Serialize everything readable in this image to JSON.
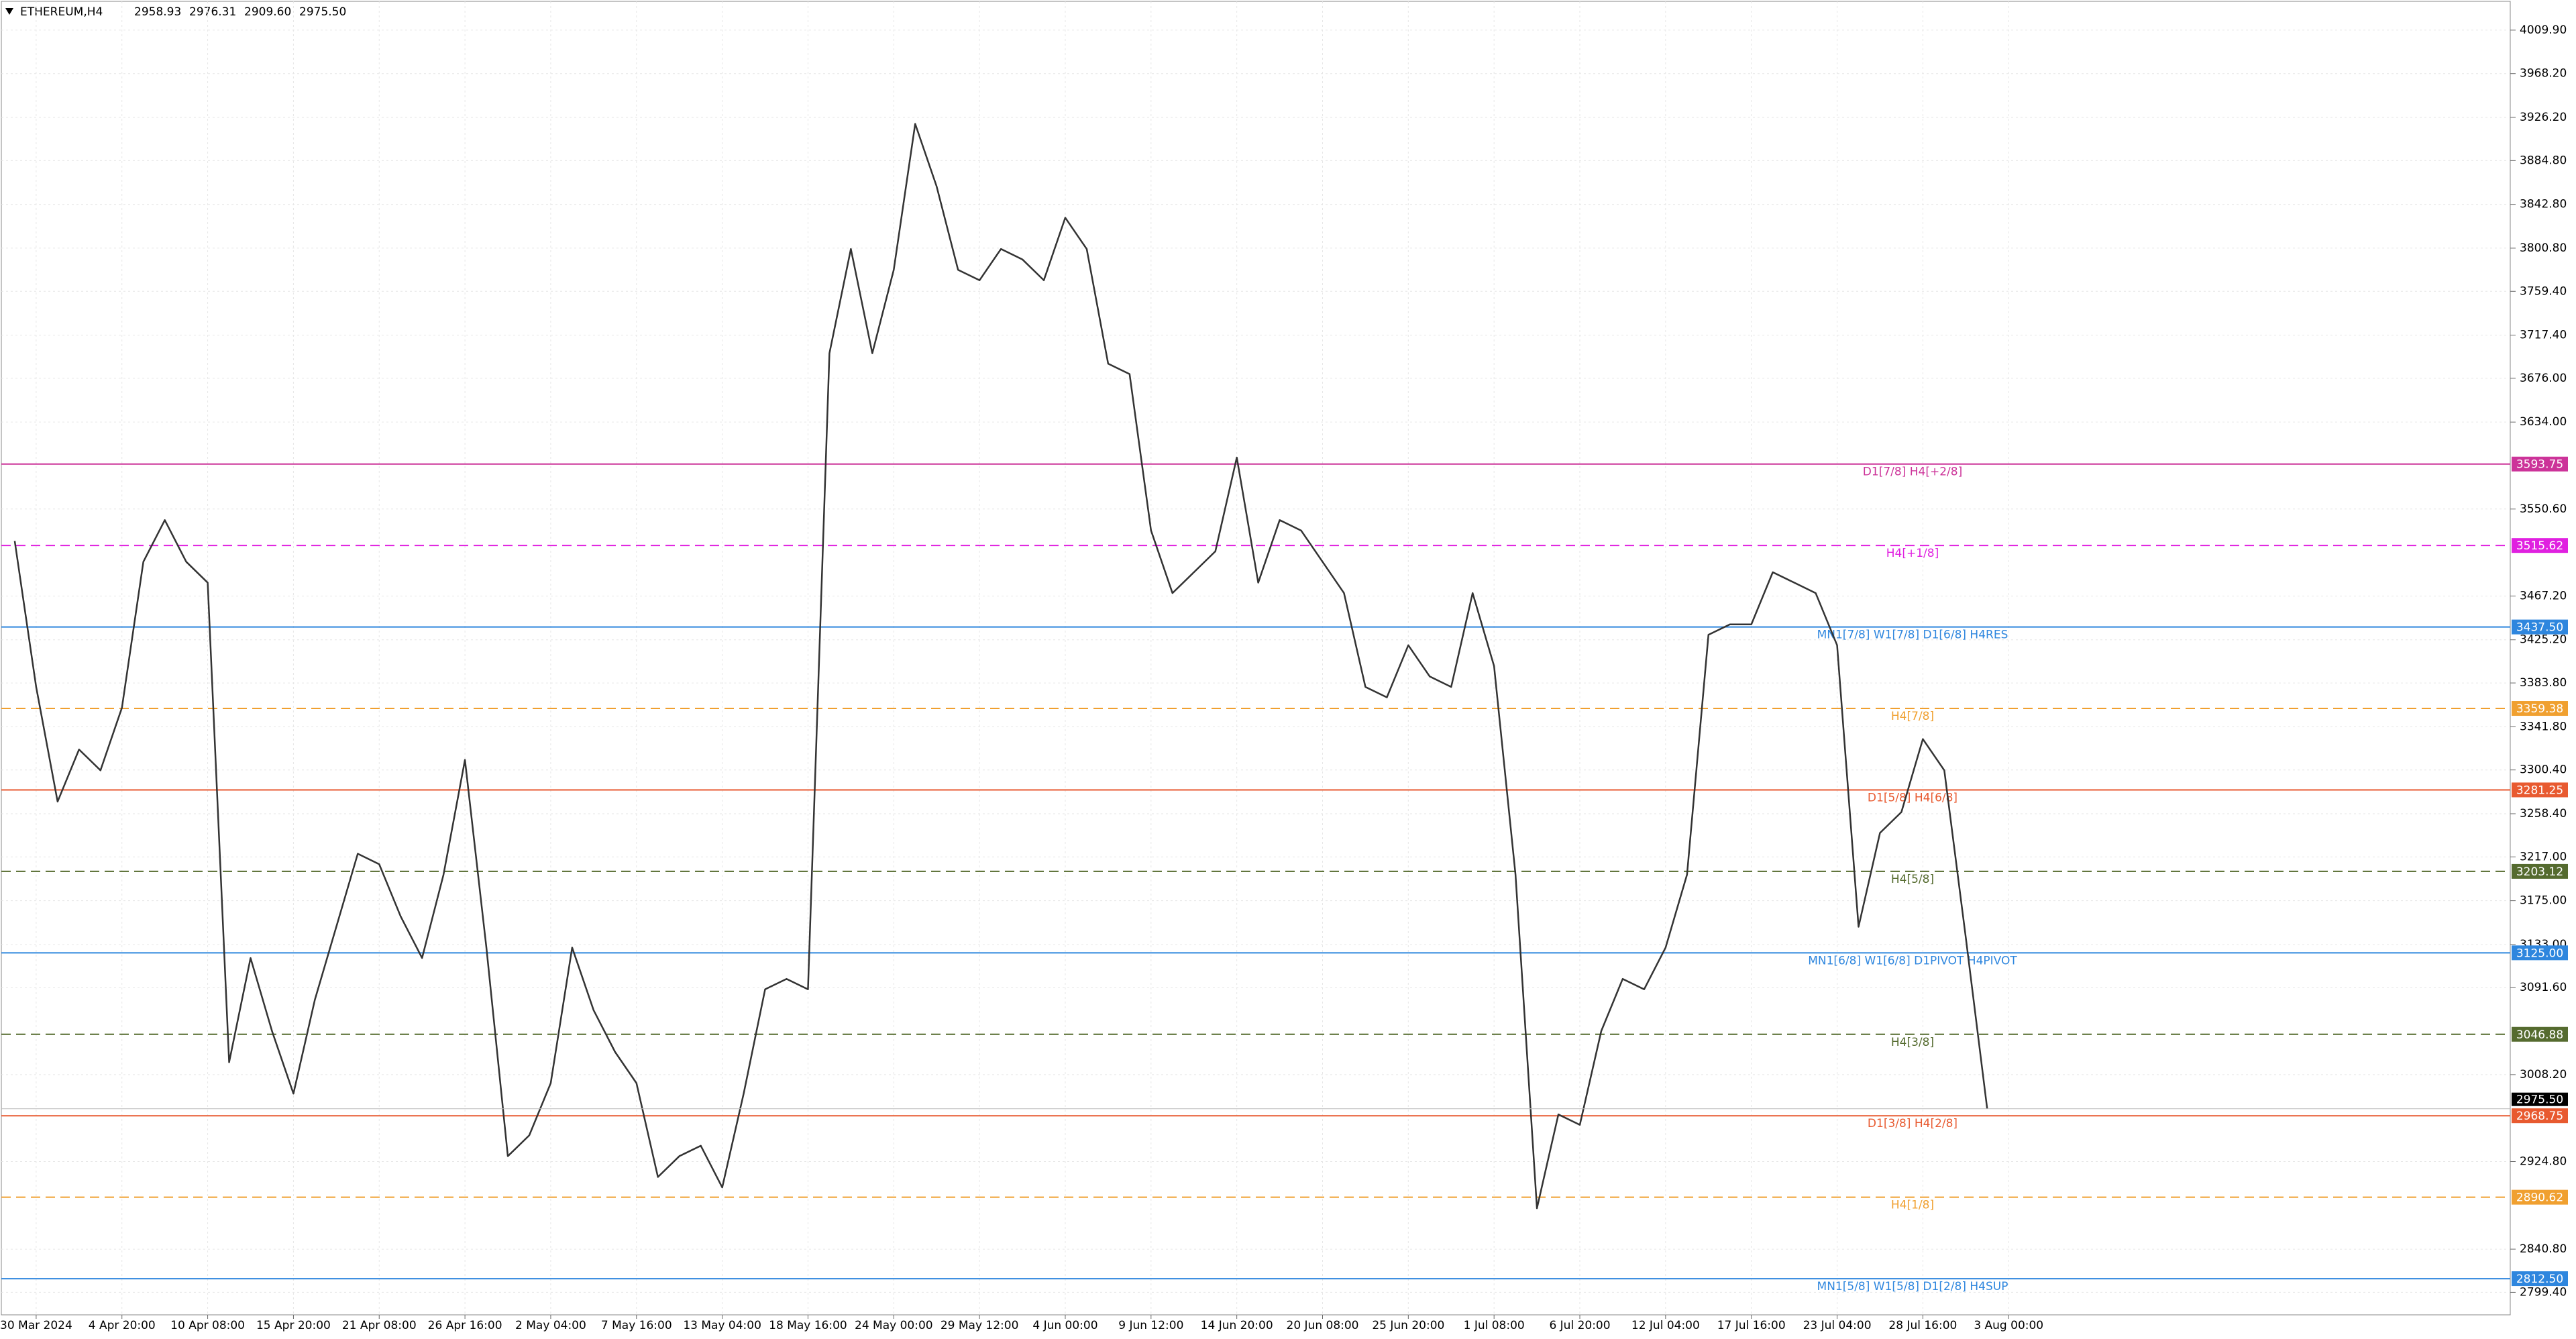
{
  "chart_data": {
    "type": "line",
    "title": "ETHEREUM,H4",
    "ohlc_labels": [
      "2958.93",
      "2976.31",
      "2909.60",
      "2975.50"
    ],
    "categories": [
      null,
      "30 Mar 2024",
      null,
      null,
      null,
      "4 Apr 20:00",
      null,
      null,
      null,
      "10 Apr 08:00",
      null,
      null,
      null,
      "15 Apr 20:00",
      null,
      null,
      null,
      "21 Apr 08:00",
      null,
      null,
      null,
      "26 Apr 16:00",
      null,
      null,
      null,
      "2 May 04:00",
      null,
      null,
      null,
      "7 May 16:00",
      null,
      null,
      null,
      "13 May 04:00",
      null,
      null,
      null,
      "18 May 16:00",
      null,
      null,
      null,
      "24 May 00:00",
      null,
      null,
      null,
      "29 May 12:00",
      null,
      null,
      null,
      "4 Jun 00:00",
      null,
      null,
      null,
      "9 Jun 12:00",
      null,
      null,
      null,
      "14 Jun 20:00",
      null,
      null,
      null,
      "20 Jun 08:00",
      null,
      null,
      null,
      "25 Jun 20:00",
      null,
      null,
      null,
      "1 Jul 08:00",
      null,
      null,
      null,
      "6 Jul 20:00",
      null,
      null,
      null,
      "12 Jul 04:00",
      null,
      null,
      null,
      "17 Jul 16:00",
      null,
      null,
      null,
      "23 Jul 04:00",
      null,
      null,
      null,
      "28 Jul 16:00",
      null,
      null,
      null,
      "3 Aug 00:00"
    ],
    "series": [
      {
        "name": "ETHEREUM",
        "color": "#333333",
        "values": [
          3520,
          3380,
          3270,
          3320,
          3300,
          3360,
          3500,
          3540,
          3500,
          3480,
          3020,
          3120,
          3050,
          2990,
          3080,
          3150,
          3220,
          3210,
          3160,
          3120,
          3200,
          3310,
          3130,
          2930,
          2950,
          3000,
          3130,
          3070,
          3030,
          3000,
          2910,
          2930,
          2940,
          2900,
          2990,
          3090,
          3100,
          3090,
          3700,
          3800,
          3700,
          3780,
          3920,
          3860,
          3780,
          3770,
          3800,
          3790,
          3770,
          3830,
          3800,
          3690,
          3680,
          3530,
          3470,
          3490,
          3510,
          3600,
          3480,
          3540,
          3530,
          3500,
          3470,
          3380,
          3370,
          3420,
          3390,
          3380,
          3470,
          3400,
          3200,
          2880,
          2970,
          2960,
          3050,
          3100,
          3090,
          3130,
          3200,
          3430,
          3440,
          3440,
          3490,
          3480,
          3470,
          3420,
          3150,
          3240,
          3260,
          3330,
          3300,
          3140,
          2975.5,
          null
        ]
      }
    ],
    "ylim": [
      2777.8,
      4037.5
    ],
    "yticks": [
      {
        "value": 4009.9,
        "label": "4009.90"
      },
      {
        "value": 3968.2,
        "label": "3968.20"
      },
      {
        "value": 3926.2,
        "label": "3926.20"
      },
      {
        "value": 3884.8,
        "label": "3884.80"
      },
      {
        "value": 3842.8,
        "label": "3842.80"
      },
      {
        "value": 3800.8,
        "label": "3800.80"
      },
      {
        "value": 3759.4,
        "label": "3759.40"
      },
      {
        "value": 3717.4,
        "label": "3717.40"
      },
      {
        "value": 3676,
        "label": "3676.00"
      },
      {
        "value": 3634,
        "label": "3634.00"
      },
      {
        "value": 3550.6,
        "label": "3550.60"
      },
      {
        "value": 3467.2,
        "label": "3467.20"
      },
      {
        "value": 3425.2,
        "label": "3425.20"
      },
      {
        "value": 3383.8,
        "label": "3383.80"
      },
      {
        "value": 3341.8,
        "label": "3341.80"
      },
      {
        "value": 3300.4,
        "label": "3300.40"
      },
      {
        "value": 3258.4,
        "label": "3258.40"
      },
      {
        "value": 3217,
        "label": "3217.00"
      },
      {
        "value": 3175,
        "label": "3175.00"
      },
      {
        "value": 3133,
        "label": "3133.00"
      },
      {
        "value": 3091.6,
        "label": "3091.60"
      },
      {
        "value": 3008.2,
        "label": "3008.20"
      },
      {
        "value": 2924.8,
        "label": "2924.80"
      },
      {
        "value": 2840.8,
        "label": "2840.80"
      },
      {
        "value": 2799.4,
        "label": "2799.40"
      }
    ],
    "grid": true,
    "levels": [
      {
        "value": 3593.75,
        "label": "3593.75",
        "text": "D1[7/8] H4[+2/8]",
        "color": "#cc3399",
        "style": "solid"
      },
      {
        "value": 3515.62,
        "label": "3515.62",
        "text": "H4[+1/8]",
        "color": "#e020e0",
        "style": "dashed"
      },
      {
        "value": 3437.5,
        "label": "3437.50",
        "text": "MN1[7/8] W1[7/8] D1[6/8] H4RES",
        "color": "#2e86de",
        "style": "solid"
      },
      {
        "value": 3359.38,
        "label": "3359.38",
        "text": "H4[7/8]",
        "color": "#f0a030",
        "style": "dashed"
      },
      {
        "value": 3281.25,
        "label": "3281.25",
        "text": "D1[5/8] H4[6/8]",
        "color": "#e85a30",
        "style": "solid"
      },
      {
        "value": 3203.12,
        "label": "3203.12",
        "text": "H4[5/8]",
        "color": "#556b2f",
        "style": "dashed"
      },
      {
        "value": 3125,
        "label": "3125.00",
        "text": "MN1[6/8] W1[6/8] D1PIVOT H4PIVOT",
        "color": "#2e86de",
        "style": "solid"
      },
      {
        "value": 3046.88,
        "label": "3046.88",
        "text": "H4[3/8]",
        "color": "#556b2f",
        "style": "dashed"
      },
      {
        "value": 2968.75,
        "label": "2968.75",
        "text": "D1[3/8] H4[2/8]",
        "color": "#e85a30",
        "style": "solid"
      },
      {
        "value": 2890.62,
        "label": "2890.62",
        "text": "H4[1/8]",
        "color": "#f0a030",
        "style": "dashed"
      },
      {
        "value": 2812.5,
        "label": "2812.50",
        "text": "MN1[5/8] W1[5/8] D1[2/8] H4SUP",
        "color": "#2e86de",
        "style": "solid"
      }
    ],
    "current_price": {
      "value": 2975.5,
      "label": "2975.50",
      "color": "#000000"
    }
  }
}
